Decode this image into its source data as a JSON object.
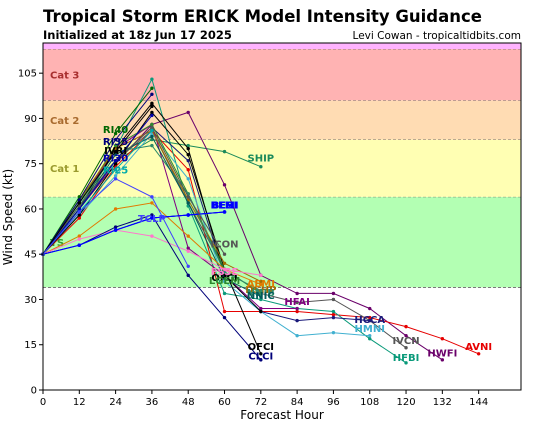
{
  "header": {
    "title": "Tropical Storm ERICK Model Intensity Guidance",
    "init": "Initialized at 18z Jun 17 2025",
    "credit": "Levi Cowan - tropicaltidbits.com"
  },
  "chart_data": {
    "type": "line",
    "xlabel": "Forecast Hour",
    "ylabel": "Wind Speed (kt)",
    "xlim": [
      0,
      158
    ],
    "ylim": [
      0,
      115
    ],
    "xticks": [
      0,
      12,
      24,
      36,
      48,
      60,
      72,
      84,
      96,
      108,
      120,
      132,
      144
    ],
    "yticks": [
      0,
      15,
      30,
      45,
      60,
      75,
      90,
      105
    ],
    "grid": false,
    "bands": [
      {
        "label": "",
        "y0": 0,
        "y1": 34,
        "color": "#ffffff",
        "label_color": "#000000"
      },
      {
        "label": "TS",
        "y0": 34,
        "y1": 64,
        "color": "#b3ffb3",
        "label_color": "#2e9a2e"
      },
      {
        "label": "Cat 1",
        "y0": 64,
        "y1": 83,
        "color": "#ffffb3",
        "label_color": "#9a9a2e"
      },
      {
        "label": "Cat 2",
        "y0": 83,
        "y1": 96,
        "color": "#ffdcb3",
        "label_color": "#a86a2e"
      },
      {
        "label": "Cat 3",
        "y0": 96,
        "y1": 113,
        "color": "#ffb3b3",
        "label_color": "#a82e2e"
      },
      {
        "label": "",
        "y0": 113,
        "y1": 115,
        "color": "#ffb3ff",
        "label_color": "#a82ea8"
      }
    ],
    "series": [
      {
        "name": "SHIP",
        "color": "#1a8a5a",
        "label_at": [
          72,
          77
        ],
        "points": [
          [
            0,
            45
          ],
          [
            12,
            63
          ],
          [
            24,
            76
          ],
          [
            36,
            83
          ],
          [
            48,
            81
          ],
          [
            60,
            79
          ],
          [
            72,
            74
          ]
        ]
      },
      {
        "name": "HWFI",
        "color": "#6a006a",
        "label_at": [
          132,
          12.5
        ],
        "points": [
          [
            0,
            45
          ],
          [
            12,
            60
          ],
          [
            24,
            75
          ],
          [
            36,
            88
          ],
          [
            48,
            92
          ],
          [
            60,
            68
          ],
          [
            72,
            38
          ],
          [
            84,
            32
          ],
          [
            96,
            32
          ],
          [
            108,
            27
          ],
          [
            120,
            18
          ],
          [
            132,
            10
          ]
        ]
      },
      {
        "name": "AVNI",
        "color": "#e60000",
        "label_at": [
          144,
          14.5
        ],
        "points": [
          [
            0,
            45
          ],
          [
            12,
            57
          ],
          [
            24,
            74
          ],
          [
            36,
            86
          ],
          [
            48,
            73
          ],
          [
            60,
            26
          ],
          [
            72,
            26
          ],
          [
            84,
            26
          ],
          [
            96,
            25
          ],
          [
            108,
            24
          ],
          [
            120,
            21
          ],
          [
            132,
            17
          ],
          [
            144,
            12
          ]
        ]
      },
      {
        "name": "HFBI",
        "color": "#0a9a7a",
        "label_at": [
          120,
          11
        ],
        "points": [
          [
            0,
            45
          ],
          [
            12,
            62
          ],
          [
            24,
            80
          ],
          [
            36,
            103
          ],
          [
            48,
            61
          ],
          [
            60,
            32
          ],
          [
            72,
            30
          ],
          [
            84,
            27
          ],
          [
            96,
            26
          ],
          [
            108,
            17
          ],
          [
            120,
            9
          ]
        ]
      },
      {
        "name": "IVCN",
        "color": "#555555",
        "label_at": [
          120,
          16.5
        ],
        "points": [
          [
            0,
            45
          ],
          [
            12,
            60
          ],
          [
            24,
            76
          ],
          [
            36,
            86
          ],
          [
            48,
            62
          ],
          [
            60,
            40
          ],
          [
            72,
            32
          ],
          [
            84,
            29
          ],
          [
            96,
            30
          ],
          [
            108,
            23
          ],
          [
            120,
            14
          ]
        ]
      },
      {
        "name": "HCCA",
        "color": "#1a1a7a",
        "label_at": [
          108,
          23.5
        ],
        "points": [
          [
            0,
            45
          ],
          [
            12,
            60
          ],
          [
            24,
            76
          ],
          [
            36,
            87
          ],
          [
            48,
            76
          ],
          [
            60,
            38
          ],
          [
            72,
            26
          ],
          [
            84,
            23
          ],
          [
            96,
            24
          ],
          [
            108,
            23
          ]
        ]
      },
      {
        "name": "HMNI",
        "color": "#40b0d0",
        "label_at": [
          108,
          20.5
        ],
        "points": [
          [
            0,
            45
          ],
          [
            12,
            58
          ],
          [
            24,
            71
          ],
          [
            36,
            85
          ],
          [
            48,
            70
          ],
          [
            60,
            36
          ],
          [
            72,
            26
          ],
          [
            84,
            18
          ],
          [
            96,
            19
          ],
          [
            108,
            18
          ]
        ]
      },
      {
        "name": "HFAI",
        "color": "#800080",
        "label_at": [
          84,
          29.5
        ],
        "points": [
          [
            0,
            45
          ],
          [
            12,
            62
          ],
          [
            24,
            80
          ],
          [
            36,
            88
          ],
          [
            48,
            47
          ],
          [
            60,
            38
          ],
          [
            72,
            27
          ],
          [
            84,
            27
          ]
        ]
      },
      {
        "name": "OFCI",
        "color": "#000000",
        "label_at": [
          60,
          37.5
        ],
        "points": [
          [
            0,
            45
          ],
          [
            12,
            60
          ],
          [
            24,
            80
          ],
          [
            36,
            95
          ],
          [
            48,
            80
          ],
          [
            60,
            38
          ],
          [
            72,
            26
          ]
        ]
      },
      {
        "name": "OFCI",
        "color": "#000000",
        "label_at": [
          72,
          14.5
        ],
        "points": [
          [
            0,
            45
          ],
          [
            12,
            58
          ],
          [
            24,
            75
          ],
          [
            36,
            92
          ],
          [
            48,
            78
          ],
          [
            60,
            40
          ],
          [
            72,
            12
          ]
        ]
      },
      {
        "name": "LGEM",
        "color": "#2e8a2e",
        "label_at": [
          60,
          36.5
        ],
        "points": [
          [
            0,
            45
          ],
          [
            12,
            62
          ],
          [
            24,
            81
          ],
          [
            36,
            88
          ],
          [
            48,
            65
          ],
          [
            60,
            40
          ],
          [
            72,
            32
          ]
        ]
      },
      {
        "name": "DSHP",
        "color": "#a06a00",
        "label_at": [
          72,
          33.5
        ],
        "points": [
          [
            0,
            45
          ],
          [
            12,
            63
          ],
          [
            24,
            80
          ],
          [
            36,
            86
          ],
          [
            48,
            63
          ],
          [
            60,
            42
          ],
          [
            72,
            36
          ]
        ]
      },
      {
        "name": "NNIB",
        "color": "#2e8a6a",
        "label_at": [
          72,
          32.5
        ],
        "points": [
          [
            0,
            45
          ],
          [
            12,
            61
          ],
          [
            24,
            79
          ],
          [
            36,
            81
          ],
          [
            48,
            65
          ],
          [
            60,
            39
          ],
          [
            72,
            33
          ]
        ]
      },
      {
        "name": "NNIC",
        "color": "#005a5a",
        "label_at": [
          72,
          31.5
        ],
        "points": [
          [
            0,
            45
          ],
          [
            12,
            60
          ],
          [
            24,
            78
          ],
          [
            36,
            84
          ],
          [
            48,
            62
          ],
          [
            60,
            37
          ],
          [
            72,
            31
          ]
        ]
      },
      {
        "name": "AEMI",
        "color": "#e07a00",
        "label_at": [
          72,
          35.5
        ],
        "points": [
          [
            0,
            45
          ],
          [
            12,
            51
          ],
          [
            24,
            60
          ],
          [
            36,
            62
          ],
          [
            48,
            51
          ],
          [
            60,
            40
          ],
          [
            72,
            35
          ]
        ]
      },
      {
        "name": "FSSE",
        "color": "#ff77cc",
        "label_at": [
          60,
          39.5
        ],
        "points": [
          [
            0,
            45
          ],
          [
            12,
            50
          ],
          [
            24,
            53
          ],
          [
            36,
            51
          ],
          [
            48,
            46
          ],
          [
            60,
            40
          ],
          [
            72,
            38
          ]
        ]
      },
      {
        "name": "CLCI",
        "color": "#00007a",
        "label_at": [
          72,
          11.5
        ],
        "points": [
          [
            0,
            45
          ],
          [
            12,
            48
          ],
          [
            24,
            54
          ],
          [
            36,
            58
          ],
          [
            48,
            38
          ],
          [
            60,
            24
          ],
          [
            72,
            10
          ]
        ]
      },
      {
        "name": "BEHI",
        "color": "#0000ff",
        "label_at": [
          60,
          61.5
        ],
        "points": [
          [
            0,
            45
          ],
          [
            12,
            48
          ],
          [
            24,
            53
          ],
          [
            36,
            57
          ],
          [
            48,
            58
          ],
          [
            60,
            59
          ]
        ]
      },
      {
        "name": "BEMI",
        "color": "#0000ff",
        "label_at": [
          60,
          61.5
        ],
        "points": [
          [
            0,
            45
          ],
          [
            12,
            48
          ],
          [
            24,
            53
          ],
          [
            36,
            57
          ],
          [
            48,
            58
          ],
          [
            60,
            59
          ]
        ]
      },
      {
        "name": "BESI",
        "color": "#0000ff",
        "label_at": [
          60,
          61.5
        ],
        "points": [
          [
            0,
            45
          ],
          [
            12,
            48
          ],
          [
            24,
            53
          ],
          [
            36,
            57
          ],
          [
            48,
            58
          ],
          [
            60,
            59
          ]
        ]
      },
      {
        "name": "ICON",
        "color": "#555555",
        "label_at": [
          60,
          48.5
        ],
        "points": [
          [
            0,
            45
          ],
          [
            12,
            61
          ],
          [
            24,
            76
          ],
          [
            36,
            87
          ],
          [
            48,
            64
          ],
          [
            60,
            45
          ]
        ]
      },
      {
        "name": "RI40",
        "color": "#006600",
        "label_at": [
          24,
          86.5
        ],
        "points": [
          [
            0,
            45
          ],
          [
            12,
            64
          ],
          [
            24,
            85
          ],
          [
            36,
            100
          ]
        ]
      },
      {
        "name": "RI35",
        "color": "#00007a",
        "label_at": [
          24,
          82.5
        ],
        "points": [
          [
            0,
            45
          ],
          [
            12,
            63
          ],
          [
            24,
            83
          ],
          [
            36,
            98
          ]
        ]
      },
      {
        "name": "IVRI",
        "color": "#000000",
        "label_at": [
          24,
          79.5
        ],
        "points": [
          [
            0,
            45
          ],
          [
            12,
            62
          ],
          [
            24,
            79
          ],
          [
            36,
            94
          ]
        ]
      },
      {
        "name": "RI30",
        "color": "#0000aa",
        "label_at": [
          24,
          77
        ],
        "points": [
          [
            0,
            45
          ],
          [
            12,
            60
          ],
          [
            24,
            76
          ],
          [
            36,
            91
          ]
        ]
      },
      {
        "name": "RI25",
        "color": "#00aaaa",
        "label_at": [
          24,
          73
        ],
        "points": [
          [
            0,
            45
          ],
          [
            12,
            59
          ],
          [
            24,
            73
          ],
          [
            36,
            86
          ]
        ]
      },
      {
        "name": "TCLP",
        "color": "#4040ff",
        "label_at": [
          36,
          57
        ],
        "points": [
          [
            0,
            45
          ],
          [
            12,
            59
          ],
          [
            24,
            70
          ],
          [
            36,
            64
          ],
          [
            48,
            41
          ]
        ]
      }
    ]
  }
}
